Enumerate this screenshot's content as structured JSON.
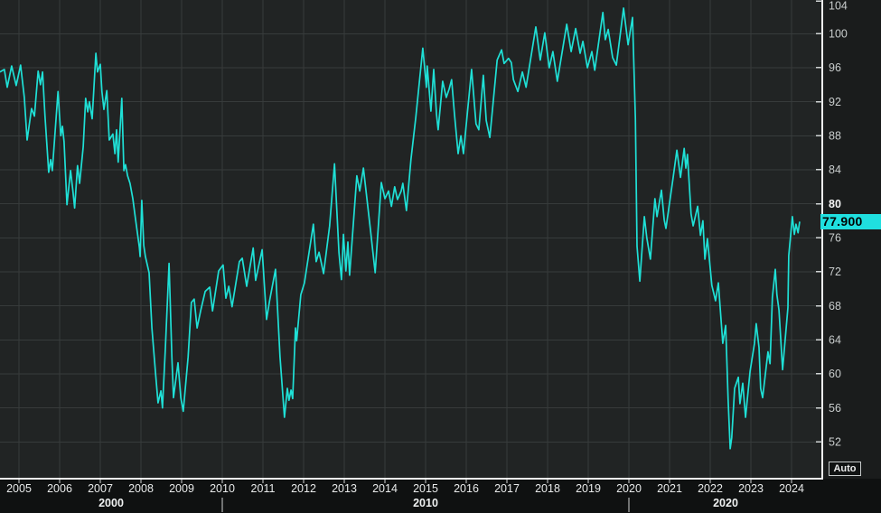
{
  "ui": {
    "last_price_label": "77.900",
    "auto_button_label": "Auto",
    "y_axis_bold_tick": "80"
  },
  "colors": {
    "line": "#1FE0D6",
    "price_tag_bg": "#1FDFDF",
    "price_tag_text": "#000000",
    "plot_bg": "#212424",
    "outer_bg": "#0F1111",
    "right_strip_bg": "#1A1C1C",
    "grid": "#373B3B",
    "axis": "#F2F2F2",
    "tick": "#D0D4D4",
    "tick_label": "#C9CDCD",
    "tick_label_bright": "#F5F5F5",
    "year_label": "#E8EAEA",
    "decade_label": "#F0F2F2"
  },
  "chart_data": {
    "type": "line",
    "title": "",
    "xlabel": "",
    "ylabel": "",
    "grid": true,
    "legend": false,
    "y_ticks": [
      104,
      100,
      96,
      92,
      88,
      84,
      80,
      76,
      72,
      68,
      64,
      60,
      56,
      52
    ],
    "x_tick_years": [
      2005,
      2006,
      2007,
      2008,
      2009,
      2010,
      2011,
      2012,
      2013,
      2014,
      2015,
      2016,
      2017,
      2018,
      2019,
      2020,
      2021,
      2022,
      2023,
      2024
    ],
    "decade_labels": [
      "2000",
      "2010",
      "2020"
    ],
    "decade_boundary_years": [
      2010,
      2020
    ],
    "x_range_years": [
      2004.53,
      2024.53
    ],
    "y_range_approx": [
      47.7,
      104.0
    ],
    "last_value": 77.9,
    "series": [
      {
        "name": "last-price",
        "color": "#1FE0D6",
        "points": [
          [
            2004.53,
            95.5
          ],
          [
            2004.64,
            95.8
          ],
          [
            2004.71,
            93.7
          ],
          [
            2004.82,
            96.2
          ],
          [
            2004.93,
            93.9
          ],
          [
            2005.04,
            96.3
          ],
          [
            2005.13,
            92.5
          ],
          [
            2005.2,
            87.5
          ],
          [
            2005.31,
            91.2
          ],
          [
            2005.38,
            90.3
          ],
          [
            2005.47,
            95.6
          ],
          [
            2005.53,
            94.0
          ],
          [
            2005.58,
            95.5
          ],
          [
            2005.64,
            90.3
          ],
          [
            2005.73,
            83.7
          ],
          [
            2005.78,
            85.2
          ],
          [
            2005.82,
            83.9
          ],
          [
            2005.96,
            93.2
          ],
          [
            2006.03,
            88.0
          ],
          [
            2006.07,
            89.1
          ],
          [
            2006.11,
            87.3
          ],
          [
            2006.18,
            79.9
          ],
          [
            2006.27,
            83.9
          ],
          [
            2006.33,
            81.4
          ],
          [
            2006.37,
            79.5
          ],
          [
            2006.44,
            84.5
          ],
          [
            2006.49,
            82.4
          ],
          [
            2006.58,
            86.7
          ],
          [
            2006.64,
            92.4
          ],
          [
            2006.69,
            90.8
          ],
          [
            2006.73,
            92.0
          ],
          [
            2006.8,
            90.0
          ],
          [
            2006.89,
            97.7
          ],
          [
            2006.93,
            95.5
          ],
          [
            2007.0,
            96.4
          ],
          [
            2007.04,
            93.2
          ],
          [
            2007.09,
            91.1
          ],
          [
            2007.16,
            93.3
          ],
          [
            2007.22,
            87.5
          ],
          [
            2007.31,
            88.2
          ],
          [
            2007.36,
            85.9
          ],
          [
            2007.4,
            88.7
          ],
          [
            2007.44,
            84.9
          ],
          [
            2007.53,
            92.4
          ],
          [
            2007.58,
            83.9
          ],
          [
            2007.62,
            84.6
          ],
          [
            2007.67,
            83.3
          ],
          [
            2007.73,
            82.4
          ],
          [
            2007.8,
            80.6
          ],
          [
            2007.87,
            78.1
          ],
          [
            2007.96,
            74.9
          ],
          [
            2007.98,
            73.8
          ],
          [
            2008.02,
            80.4
          ],
          [
            2008.07,
            75.1
          ],
          [
            2008.11,
            73.8
          ],
          [
            2008.2,
            71.9
          ],
          [
            2008.27,
            65.4
          ],
          [
            2008.36,
            60.0
          ],
          [
            2008.42,
            56.6
          ],
          [
            2008.49,
            58.0
          ],
          [
            2008.53,
            56.0
          ],
          [
            2008.6,
            63.0
          ],
          [
            2008.69,
            73.0
          ],
          [
            2008.76,
            62.0
          ],
          [
            2008.8,
            57.2
          ],
          [
            2008.91,
            61.3
          ],
          [
            2008.98,
            57.2
          ],
          [
            2009.04,
            55.6
          ],
          [
            2009.16,
            62.0
          ],
          [
            2009.24,
            68.4
          ],
          [
            2009.31,
            68.8
          ],
          [
            2009.38,
            65.4
          ],
          [
            2009.47,
            67.5
          ],
          [
            2009.58,
            69.7
          ],
          [
            2009.69,
            70.2
          ],
          [
            2009.76,
            67.4
          ],
          [
            2009.91,
            72.1
          ],
          [
            2010.02,
            72.8
          ],
          [
            2010.09,
            68.9
          ],
          [
            2010.16,
            70.3
          ],
          [
            2010.24,
            67.9
          ],
          [
            2010.42,
            73.2
          ],
          [
            2010.49,
            73.6
          ],
          [
            2010.6,
            70.3
          ],
          [
            2010.76,
            74.8
          ],
          [
            2010.82,
            71.0
          ],
          [
            2010.98,
            74.6
          ],
          [
            2011.09,
            66.4
          ],
          [
            2011.16,
            68.5
          ],
          [
            2011.31,
            72.3
          ],
          [
            2011.42,
            62.0
          ],
          [
            2011.53,
            54.9
          ],
          [
            2011.6,
            58.3
          ],
          [
            2011.64,
            56.9
          ],
          [
            2011.69,
            58.1
          ],
          [
            2011.73,
            57.1
          ],
          [
            2011.8,
            65.4
          ],
          [
            2011.83,
            63.9
          ],
          [
            2011.93,
            69.3
          ],
          [
            2012.02,
            70.7
          ],
          [
            2012.24,
            77.6
          ],
          [
            2012.31,
            73.2
          ],
          [
            2012.38,
            74.3
          ],
          [
            2012.49,
            71.8
          ],
          [
            2012.64,
            77.4
          ],
          [
            2012.76,
            84.7
          ],
          [
            2012.87,
            74.3
          ],
          [
            2012.93,
            71.1
          ],
          [
            2012.98,
            76.4
          ],
          [
            2013.04,
            72.1
          ],
          [
            2013.09,
            75.5
          ],
          [
            2013.13,
            71.6
          ],
          [
            2013.31,
            83.3
          ],
          [
            2013.38,
            81.5
          ],
          [
            2013.47,
            84.2
          ],
          [
            2013.64,
            77.1
          ],
          [
            2013.76,
            71.9
          ],
          [
            2013.91,
            82.5
          ],
          [
            2014.0,
            80.6
          ],
          [
            2014.09,
            81.5
          ],
          [
            2014.16,
            79.7
          ],
          [
            2014.24,
            82.0
          ],
          [
            2014.31,
            80.5
          ],
          [
            2014.4,
            81.5
          ],
          [
            2014.44,
            82.4
          ],
          [
            2014.53,
            79.2
          ],
          [
            2014.64,
            85.2
          ],
          [
            2014.76,
            90.2
          ],
          [
            2014.93,
            98.3
          ],
          [
            2015.02,
            93.7
          ],
          [
            2015.04,
            96.2
          ],
          [
            2015.13,
            90.9
          ],
          [
            2015.2,
            95.8
          ],
          [
            2015.27,
            90.5
          ],
          [
            2015.31,
            88.7
          ],
          [
            2015.42,
            94.4
          ],
          [
            2015.51,
            92.5
          ],
          [
            2015.58,
            93.5
          ],
          [
            2015.64,
            94.6
          ],
          [
            2015.71,
            90.5
          ],
          [
            2015.8,
            85.9
          ],
          [
            2015.87,
            88.0
          ],
          [
            2015.93,
            85.9
          ],
          [
            2016.13,
            95.8
          ],
          [
            2016.24,
            89.4
          ],
          [
            2016.31,
            88.7
          ],
          [
            2016.42,
            95.1
          ],
          [
            2016.49,
            89.8
          ],
          [
            2016.58,
            87.8
          ],
          [
            2016.76,
            96.9
          ],
          [
            2016.87,
            98.1
          ],
          [
            2016.93,
            96.5
          ],
          [
            2017.04,
            97.1
          ],
          [
            2017.11,
            96.6
          ],
          [
            2017.16,
            94.6
          ],
          [
            2017.27,
            93.2
          ],
          [
            2017.38,
            95.5
          ],
          [
            2017.47,
            93.7
          ],
          [
            2017.71,
            100.8
          ],
          [
            2017.82,
            96.9
          ],
          [
            2017.93,
            100.1
          ],
          [
            2018.04,
            96.0
          ],
          [
            2018.13,
            97.9
          ],
          [
            2018.24,
            94.4
          ],
          [
            2018.47,
            101.1
          ],
          [
            2018.58,
            97.9
          ],
          [
            2018.69,
            100.6
          ],
          [
            2018.8,
            97.7
          ],
          [
            2018.87,
            99.1
          ],
          [
            2018.98,
            96.0
          ],
          [
            2019.09,
            97.9
          ],
          [
            2019.16,
            95.7
          ],
          [
            2019.36,
            102.5
          ],
          [
            2019.42,
            99.3
          ],
          [
            2019.49,
            100.5
          ],
          [
            2019.6,
            97.2
          ],
          [
            2019.69,
            96.3
          ],
          [
            2019.87,
            103.0
          ],
          [
            2019.98,
            98.7
          ],
          [
            2020.09,
            101.9
          ],
          [
            2020.16,
            90.0
          ],
          [
            2020.2,
            75.0
          ],
          [
            2020.27,
            70.9
          ],
          [
            2020.38,
            78.5
          ],
          [
            2020.44,
            76.0
          ],
          [
            2020.53,
            73.5
          ],
          [
            2020.64,
            80.6
          ],
          [
            2020.69,
            78.5
          ],
          [
            2020.8,
            81.6
          ],
          [
            2020.87,
            78.1
          ],
          [
            2020.91,
            77.1
          ],
          [
            2021.09,
            83.1
          ],
          [
            2021.18,
            86.3
          ],
          [
            2021.27,
            83.1
          ],
          [
            2021.36,
            86.5
          ],
          [
            2021.4,
            84.2
          ],
          [
            2021.44,
            85.8
          ],
          [
            2021.53,
            78.8
          ],
          [
            2021.58,
            77.4
          ],
          [
            2021.69,
            79.7
          ],
          [
            2021.76,
            76.3
          ],
          [
            2021.82,
            78.0
          ],
          [
            2021.87,
            73.5
          ],
          [
            2021.93,
            75.9
          ],
          [
            2022.04,
            70.4
          ],
          [
            2022.13,
            68.6
          ],
          [
            2022.2,
            70.7
          ],
          [
            2022.31,
            63.6
          ],
          [
            2022.38,
            65.7
          ],
          [
            2022.44,
            57.0
          ],
          [
            2022.49,
            51.2
          ],
          [
            2022.53,
            52.5
          ],
          [
            2022.6,
            58.3
          ],
          [
            2022.69,
            59.6
          ],
          [
            2022.73,
            56.5
          ],
          [
            2022.8,
            58.9
          ],
          [
            2022.87,
            54.9
          ],
          [
            2022.98,
            60.3
          ],
          [
            2023.09,
            63.6
          ],
          [
            2023.13,
            65.9
          ],
          [
            2023.2,
            63.1
          ],
          [
            2023.24,
            58.3
          ],
          [
            2023.29,
            57.2
          ],
          [
            2023.42,
            62.6
          ],
          [
            2023.47,
            61.2
          ],
          [
            2023.53,
            69.0
          ],
          [
            2023.6,
            72.3
          ],
          [
            2023.64,
            69.3
          ],
          [
            2023.69,
            67.5
          ],
          [
            2023.78,
            60.5
          ],
          [
            2023.91,
            67.8
          ],
          [
            2023.93,
            73.9
          ],
          [
            2024.02,
            78.5
          ],
          [
            2024.07,
            76.4
          ],
          [
            2024.11,
            77.6
          ],
          [
            2024.16,
            76.6
          ],
          [
            2024.2,
            77.9
          ]
        ]
      }
    ]
  }
}
